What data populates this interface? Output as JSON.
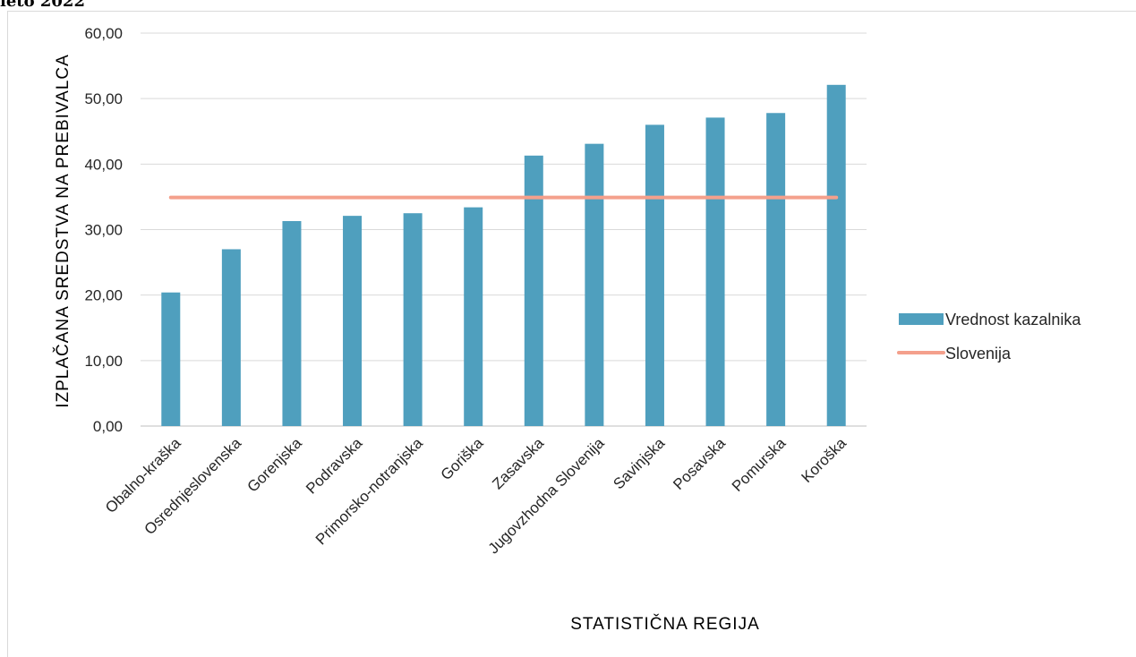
{
  "header": {
    "title_fragment": "leto 2022"
  },
  "chart_data": {
    "type": "bar",
    "categories": [
      "Obalno-kraška",
      "Osrednjeslovenska",
      "Gorenjska",
      "Podravska",
      "Primorsko-notranjska",
      "Goriška",
      "Zasavska",
      "Jugovzhodna Slovenija",
      "Savinjska",
      "Posavska",
      "Pomurska",
      "Koroška"
    ],
    "series": [
      {
        "name": "Vrednost kazalnika",
        "type": "bar",
        "color": "#4f9fbe",
        "values": [
          20.4,
          27.0,
          31.3,
          32.1,
          32.5,
          33.4,
          41.3,
          43.1,
          46.0,
          47.1,
          47.8,
          52.1
        ]
      },
      {
        "name": "Slovenija",
        "type": "line",
        "color": "#f4a08c",
        "values": [
          34.9,
          34.9,
          34.9,
          34.9,
          34.9,
          34.9,
          34.9,
          34.9,
          34.9,
          34.9,
          34.9,
          34.9
        ]
      }
    ],
    "ylim": [
      0,
      60
    ],
    "yticks": [
      "0,00",
      "10,00",
      "20,00",
      "30,00",
      "40,00",
      "50,00",
      "60,00"
    ],
    "ylabel": "IZPLAČANA SREDSTVA NA PREBIVALCA",
    "xlabel": "STATISTIČNA REGIJA",
    "grid": true,
    "legend": "right"
  }
}
